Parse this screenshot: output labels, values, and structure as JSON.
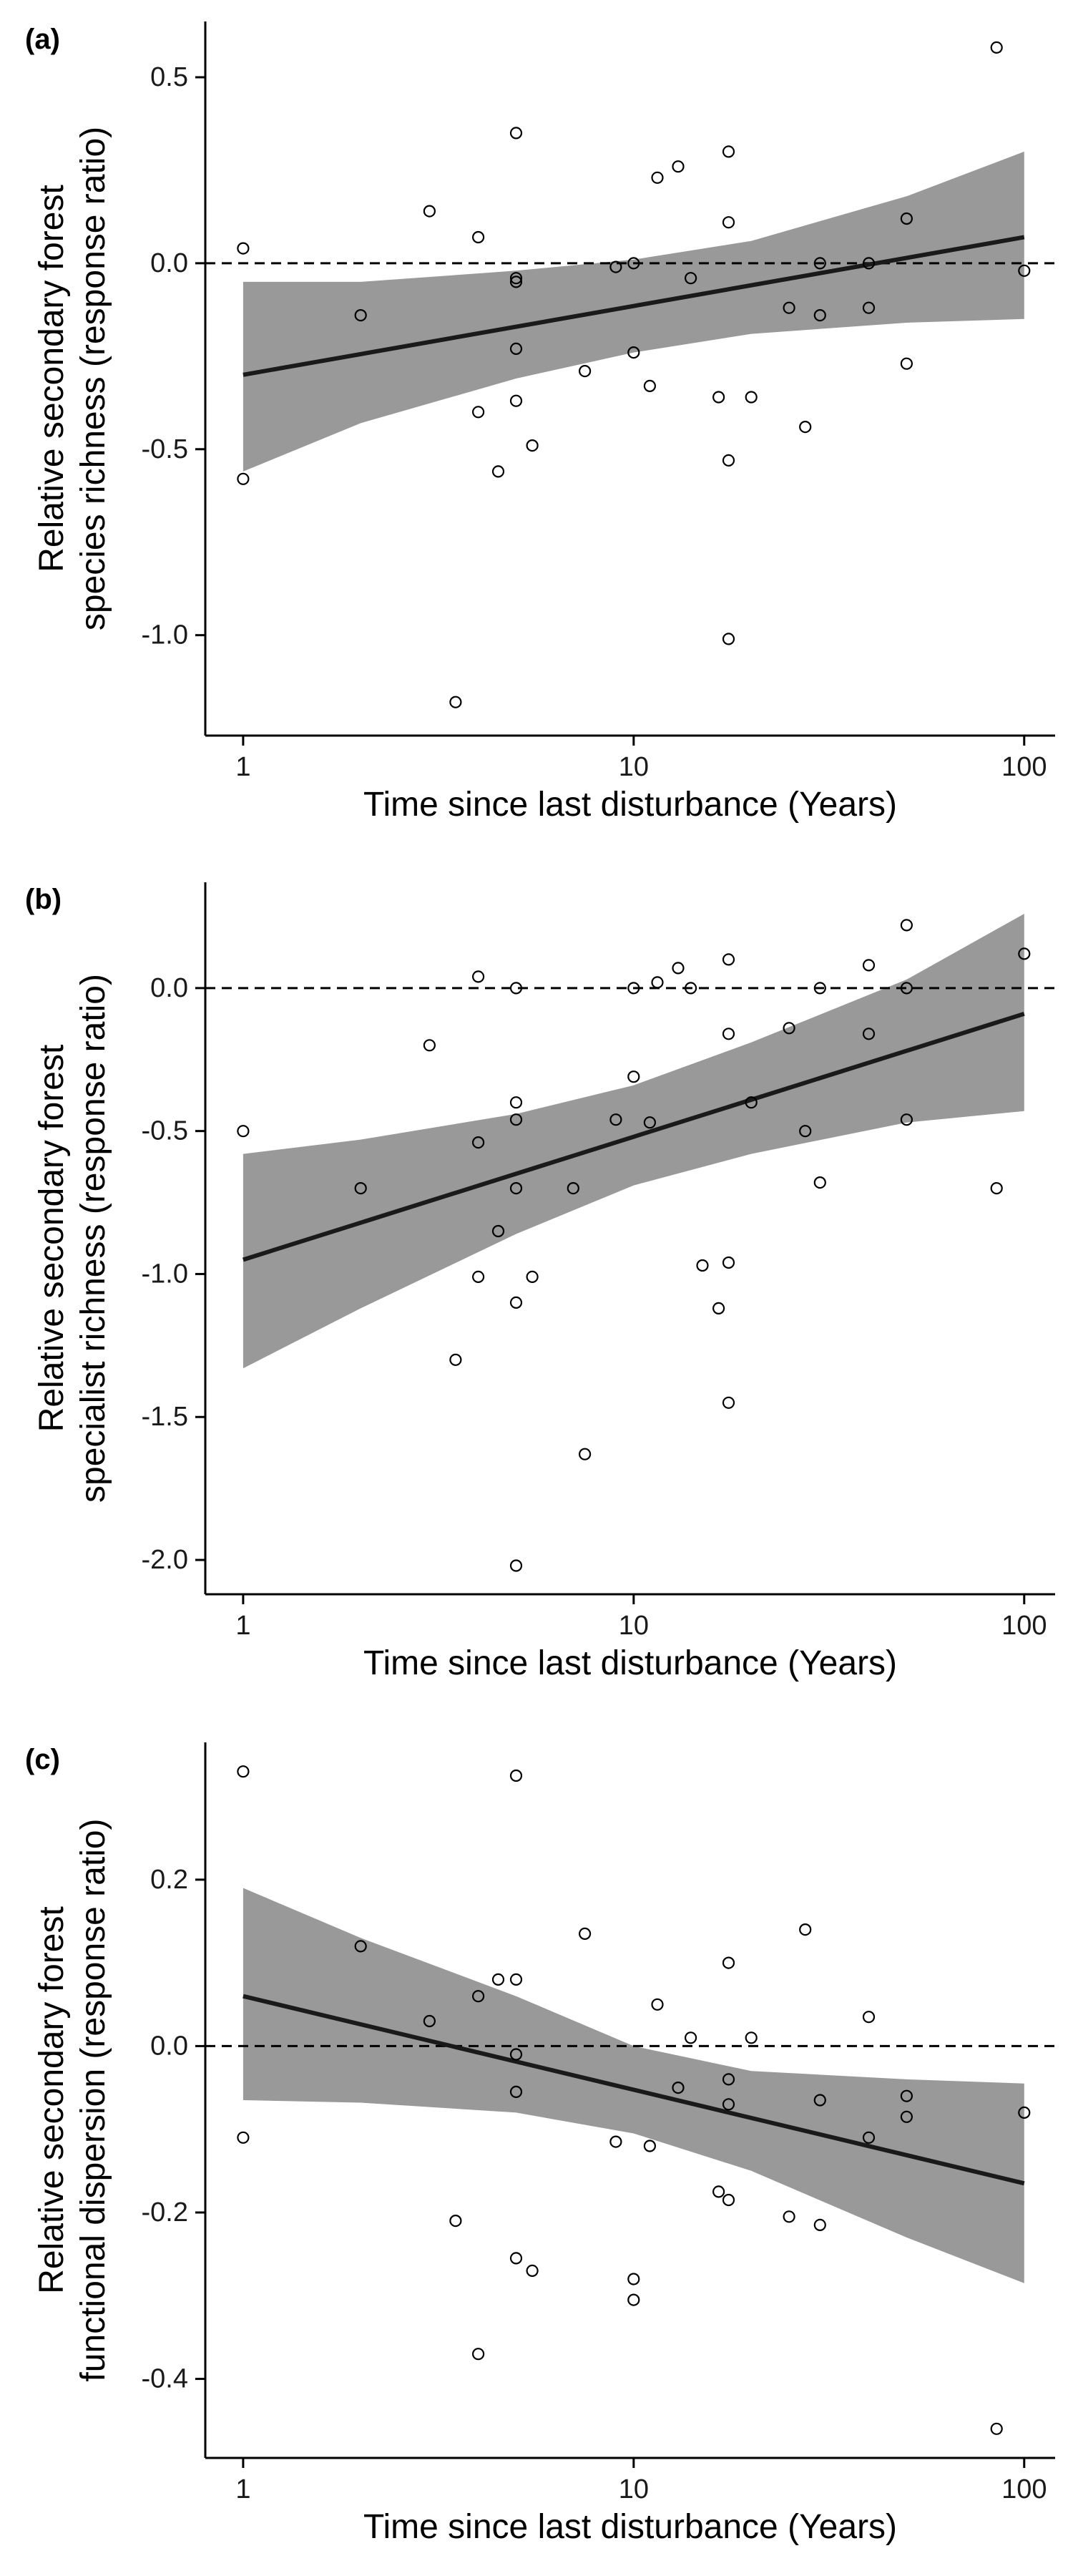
{
  "figure": {
    "colors": {
      "ribbon": "#999999",
      "fit_line": "#1a1a1a",
      "points_stroke": "#000000",
      "reference_line": "#000000",
      "axis": "#000000"
    }
  },
  "chart_data": [
    {
      "type": "scatter",
      "panel_label": "(a)",
      "title": "",
      "xlabel": "Time since last disturbance (Years)",
      "ylabel_lines": [
        "Relative secondary forest",
        "species richness (response ratio)"
      ],
      "x_scale": "log",
      "xlim": [
        0.8,
        120
      ],
      "ylim": [
        -1.27,
        0.65
      ],
      "x_ticks": [
        {
          "value": 1,
          "label": "1"
        },
        {
          "value": 10,
          "label": "10"
        },
        {
          "value": 100,
          "label": "100"
        }
      ],
      "y_ticks": [
        {
          "value": 0.5,
          "label": "0.5"
        },
        {
          "value": 0.0,
          "label": "0.0"
        },
        {
          "value": -0.5,
          "label": "-0.5"
        },
        {
          "value": -1.0,
          "label": "-1.0"
        }
      ],
      "reference_line_y": 0,
      "grid": false,
      "fit": {
        "x": [
          1,
          100
        ],
        "y": [
          -0.3,
          0.07
        ]
      },
      "ci_band": {
        "x": [
          1,
          2,
          5,
          10,
          20,
          50,
          100
        ],
        "lower": [
          -0.56,
          -0.43,
          -0.31,
          -0.24,
          -0.19,
          -0.16,
          -0.15
        ],
        "upper": [
          -0.05,
          -0.05,
          -0.02,
          0.01,
          0.06,
          0.18,
          0.3
        ]
      },
      "points": [
        {
          "x": 1,
          "y": 0.04
        },
        {
          "x": 1,
          "y": -0.58
        },
        {
          "x": 2,
          "y": -0.14
        },
        {
          "x": 3,
          "y": 0.14
        },
        {
          "x": 3.5,
          "y": -1.18
        },
        {
          "x": 4,
          "y": 0.07
        },
        {
          "x": 4,
          "y": -0.4
        },
        {
          "x": 4.5,
          "y": -0.56
        },
        {
          "x": 5,
          "y": 0.35
        },
        {
          "x": 5,
          "y": -0.04
        },
        {
          "x": 5,
          "y": -0.05
        },
        {
          "x": 5,
          "y": -0.23
        },
        {
          "x": 5,
          "y": -0.37
        },
        {
          "x": 5.5,
          "y": -0.49
        },
        {
          "x": 7.5,
          "y": -0.29
        },
        {
          "x": 9,
          "y": -0.01
        },
        {
          "x": 10,
          "y": 0.0
        },
        {
          "x": 10,
          "y": -0.24
        },
        {
          "x": 11,
          "y": -0.33
        },
        {
          "x": 11.5,
          "y": 0.23
        },
        {
          "x": 13,
          "y": 0.26
        },
        {
          "x": 14,
          "y": -0.04
        },
        {
          "x": 16.5,
          "y": -0.36
        },
        {
          "x": 17.5,
          "y": 0.3
        },
        {
          "x": 17.5,
          "y": 0.11
        },
        {
          "x": 17.5,
          "y": -0.53
        },
        {
          "x": 17.5,
          "y": -1.01
        },
        {
          "x": 20,
          "y": -0.36
        },
        {
          "x": 25,
          "y": -0.12
        },
        {
          "x": 27.5,
          "y": -0.44
        },
        {
          "x": 30,
          "y": 0.0
        },
        {
          "x": 30,
          "y": -0.14
        },
        {
          "x": 40,
          "y": 0.0
        },
        {
          "x": 40,
          "y": -0.12
        },
        {
          "x": 50,
          "y": 0.12
        },
        {
          "x": 50,
          "y": -0.27
        },
        {
          "x": 85,
          "y": 0.58
        },
        {
          "x": 100,
          "y": -0.02
        }
      ]
    },
    {
      "type": "scatter",
      "panel_label": "(b)",
      "title": "",
      "xlabel": "Time since last disturbance (Years)",
      "ylabel_lines": [
        "Relative secondary forest",
        "specialist richness (response ratio)"
      ],
      "x_scale": "log",
      "xlim": [
        0.8,
        120
      ],
      "ylim": [
        -2.12,
        0.37
      ],
      "x_ticks": [
        {
          "value": 1,
          "label": "1"
        },
        {
          "value": 10,
          "label": "10"
        },
        {
          "value": 100,
          "label": "100"
        }
      ],
      "y_ticks": [
        {
          "value": 0.0,
          "label": "0.0"
        },
        {
          "value": -0.5,
          "label": "-0.5"
        },
        {
          "value": -1.0,
          "label": "-1.0"
        },
        {
          "value": -1.5,
          "label": "-1.5"
        },
        {
          "value": -2.0,
          "label": "-2.0"
        }
      ],
      "reference_line_y": 0,
      "grid": false,
      "fit": {
        "x": [
          1,
          100
        ],
        "y": [
          -0.95,
          -0.09
        ]
      },
      "ci_band": {
        "x": [
          1,
          2,
          5,
          10,
          20,
          50,
          100
        ],
        "lower": [
          -1.33,
          -1.12,
          -0.86,
          -0.69,
          -0.58,
          -0.47,
          -0.43
        ],
        "upper": [
          -0.58,
          -0.53,
          -0.44,
          -0.34,
          -0.19,
          0.03,
          0.26
        ]
      },
      "points": [
        {
          "x": 1,
          "y": -0.5
        },
        {
          "x": 2,
          "y": -0.7
        },
        {
          "x": 3,
          "y": -0.2
        },
        {
          "x": 3.5,
          "y": -1.3
        },
        {
          "x": 4,
          "y": 0.04
        },
        {
          "x": 4,
          "y": -0.54
        },
        {
          "x": 4,
          "y": -1.01
        },
        {
          "x": 4.5,
          "y": -0.85
        },
        {
          "x": 5,
          "y": 0.0
        },
        {
          "x": 5,
          "y": -0.4
        },
        {
          "x": 5,
          "y": -0.46
        },
        {
          "x": 5,
          "y": -0.7
        },
        {
          "x": 5,
          "y": -1.1
        },
        {
          "x": 5,
          "y": -2.02
        },
        {
          "x": 5.5,
          "y": -1.01
        },
        {
          "x": 7,
          "y": -0.7
        },
        {
          "x": 7.5,
          "y": -1.63
        },
        {
          "x": 9,
          "y": -0.46
        },
        {
          "x": 10,
          "y": 0.0
        },
        {
          "x": 10,
          "y": -0.31
        },
        {
          "x": 11,
          "y": -0.47
        },
        {
          "x": 11.5,
          "y": 0.02
        },
        {
          "x": 13,
          "y": 0.07
        },
        {
          "x": 14,
          "y": 0.0
        },
        {
          "x": 15,
          "y": -0.97
        },
        {
          "x": 16.5,
          "y": -1.12
        },
        {
          "x": 17.5,
          "y": 0.1
        },
        {
          "x": 17.5,
          "y": -0.16
        },
        {
          "x": 17.5,
          "y": -0.96
        },
        {
          "x": 17.5,
          "y": -1.45
        },
        {
          "x": 20,
          "y": -0.4
        },
        {
          "x": 25,
          "y": -0.14
        },
        {
          "x": 27.5,
          "y": -0.5
        },
        {
          "x": 30,
          "y": 0.0
        },
        {
          "x": 30,
          "y": -0.68
        },
        {
          "x": 40,
          "y": 0.08
        },
        {
          "x": 40,
          "y": -0.16
        },
        {
          "x": 50,
          "y": 0.22
        },
        {
          "x": 50,
          "y": 0.0
        },
        {
          "x": 50,
          "y": -0.46
        },
        {
          "x": 85,
          "y": -0.7
        },
        {
          "x": 100,
          "y": 0.12
        }
      ]
    },
    {
      "type": "scatter",
      "panel_label": "(c)",
      "title": "",
      "xlabel": "Time since last disturbance (Years)",
      "ylabel_lines": [
        "Relative secondary forest",
        "functional dispersion (response ratio)"
      ],
      "x_scale": "log",
      "xlim": [
        0.8,
        120
      ],
      "ylim": [
        -0.495,
        0.365
      ],
      "x_ticks": [
        {
          "value": 1,
          "label": "1"
        },
        {
          "value": 10,
          "label": "10"
        },
        {
          "value": 100,
          "label": "100"
        }
      ],
      "y_ticks": [
        {
          "value": 0.2,
          "label": "0.2"
        },
        {
          "value": 0.0,
          "label": "0.0"
        },
        {
          "value": -0.2,
          "label": "-0.2"
        },
        {
          "value": -0.4,
          "label": "-0.4"
        }
      ],
      "reference_line_y": 0,
      "grid": false,
      "fit": {
        "x": [
          1,
          100
        ],
        "y": [
          0.06,
          -0.165
        ]
      },
      "ci_band": {
        "x": [
          1,
          2,
          5,
          10,
          20,
          50,
          100
        ],
        "lower": [
          -0.065,
          -0.068,
          -0.08,
          -0.105,
          -0.15,
          -0.23,
          -0.285
        ],
        "upper": [
          0.19,
          0.13,
          0.06,
          0.0,
          -0.03,
          -0.04,
          -0.045
        ]
      },
      "points": [
        {
          "x": 1,
          "y": 0.33
        },
        {
          "x": 1,
          "y": -0.11
        },
        {
          "x": 2,
          "y": 0.12
        },
        {
          "x": 3,
          "y": 0.03
        },
        {
          "x": 3.5,
          "y": -0.21
        },
        {
          "x": 4,
          "y": 0.06
        },
        {
          "x": 4,
          "y": -0.37
        },
        {
          "x": 4.5,
          "y": 0.08
        },
        {
          "x": 5,
          "y": 0.325
        },
        {
          "x": 5,
          "y": 0.08
        },
        {
          "x": 5,
          "y": -0.01
        },
        {
          "x": 5,
          "y": -0.055
        },
        {
          "x": 5,
          "y": -0.255
        },
        {
          "x": 5.5,
          "y": -0.27
        },
        {
          "x": 7.5,
          "y": 0.135
        },
        {
          "x": 9,
          "y": -0.115
        },
        {
          "x": 10,
          "y": -0.28
        },
        {
          "x": 10,
          "y": -0.305
        },
        {
          "x": 11,
          "y": -0.12
        },
        {
          "x": 11.5,
          "y": 0.05
        },
        {
          "x": 13,
          "y": -0.05
        },
        {
          "x": 14,
          "y": 0.01
        },
        {
          "x": 16.5,
          "y": -0.175
        },
        {
          "x": 17.5,
          "y": 0.1
        },
        {
          "x": 17.5,
          "y": -0.04
        },
        {
          "x": 17.5,
          "y": -0.07
        },
        {
          "x": 17.5,
          "y": -0.185
        },
        {
          "x": 20,
          "y": 0.01
        },
        {
          "x": 25,
          "y": -0.205
        },
        {
          "x": 27.5,
          "y": 0.14
        },
        {
          "x": 30,
          "y": -0.065
        },
        {
          "x": 30,
          "y": -0.215
        },
        {
          "x": 40,
          "y": 0.035
        },
        {
          "x": 40,
          "y": -0.11
        },
        {
          "x": 50,
          "y": -0.06
        },
        {
          "x": 50,
          "y": -0.085
        },
        {
          "x": 85,
          "y": -0.46
        },
        {
          "x": 100,
          "y": -0.08
        }
      ]
    }
  ]
}
